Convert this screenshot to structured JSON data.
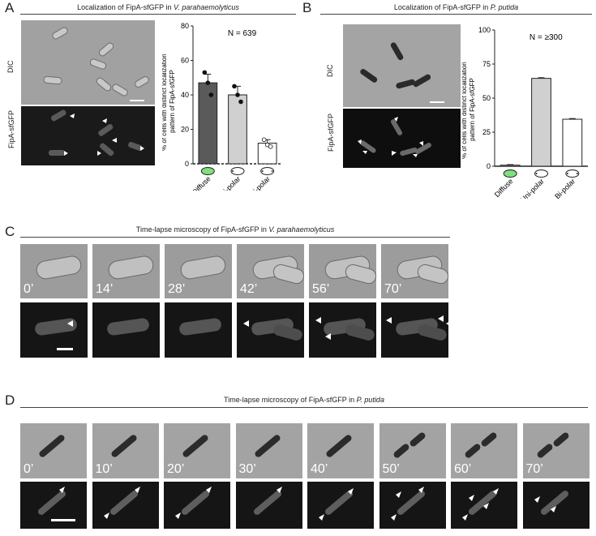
{
  "panels": {
    "A": {
      "label": "A",
      "title_pre": "Localization of FipA-sfGFP in ",
      "title_species": "V. parahaemolyticus"
    },
    "B": {
      "label": "B",
      "title_pre": "Localization of FipA-sfGFP in ",
      "title_species": "P. putida"
    },
    "C": {
      "label": "C",
      "title_pre": "Time-lapse microscopy of FipA-sfGFP in ",
      "title_species": "V. parahaemolyticus",
      "times": [
        "0’",
        "14’",
        "28’",
        "42’",
        "56’",
        "70’"
      ]
    },
    "D": {
      "label": "D",
      "title_pre": "Time-lapse microscopy of FipA-sfGFP in ",
      "title_species": "P. putida",
      "times": [
        "0’",
        "10’",
        "20’",
        "30’",
        "40’",
        "50’",
        "60’",
        "70’"
      ]
    }
  },
  "channels": {
    "dic": "DIC",
    "gfp": "FipA-sfGFP"
  },
  "colors": {
    "diffuse_fill": "#7fe07f",
    "bar_dark": "#5a5a5a",
    "bar_light": "#d0d0d0",
    "bar_white": "#ffffff"
  },
  "chart_data": [
    {
      "type": "bar",
      "panel": "A",
      "n_label": "N = 639",
      "ylabel": "% of cells with distinct localization pattern of FipA-sfGFP",
      "categories": [
        "Diffuse",
        "Uni-polar",
        "Bi-polar"
      ],
      "values": [
        47,
        40,
        12
      ],
      "errors": [
        5,
        5,
        2
      ],
      "points": [
        [
          53,
          47,
          40
        ],
        [
          45,
          40,
          36
        ],
        [
          14,
          11,
          10
        ]
      ],
      "ylim": [
        0,
        80
      ],
      "yticks": [
        0,
        20,
        40,
        60,
        80
      ]
    },
    {
      "type": "bar",
      "panel": "B",
      "n_label": "N = ≥300",
      "ylabel": "% of cells with distinct localization pattern of FipA-sfGFP",
      "categories": [
        "Diffuse",
        "Uni-polar",
        "Bi-polar"
      ],
      "values": [
        0.8,
        64.5,
        34.5
      ],
      "errors": [
        0.4,
        0.5,
        0.5
      ],
      "ylim": [
        0,
        100
      ],
      "yticks": [
        0,
        25,
        50,
        75,
        100
      ]
    }
  ]
}
